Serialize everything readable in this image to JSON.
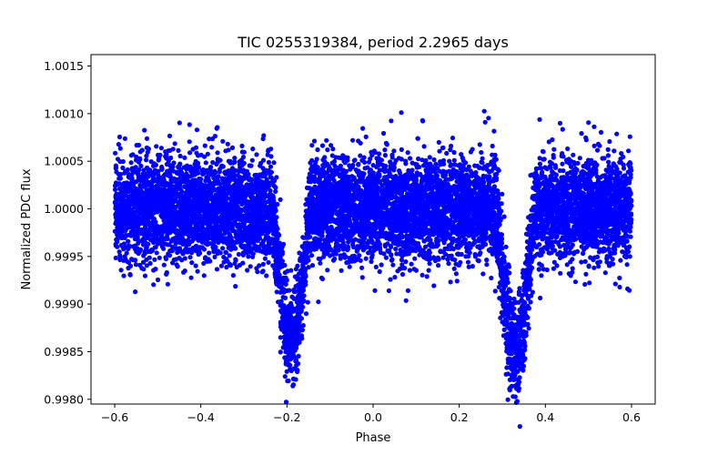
{
  "chart_data": {
    "type": "scatter",
    "title": "TIC 0255319384, period 2.2965 days",
    "xlabel": "Phase",
    "ylabel": "Normalized PDC flux",
    "xlim": [
      -0.655,
      0.655
    ],
    "ylim": [
      0.99795,
      1.00162
    ],
    "xticks": [
      -0.6,
      -0.4,
      -0.2,
      0.0,
      0.2,
      0.4,
      0.6
    ],
    "xtick_labels": [
      "−0.6",
      "−0.4",
      "−0.2",
      "0.0",
      "0.2",
      "0.4",
      "0.6"
    ],
    "yticks": [
      0.998,
      0.9985,
      0.999,
      0.9995,
      1.0,
      1.0005,
      1.001,
      1.0015
    ],
    "ytick_labels": [
      "0.9980",
      "0.9985",
      "0.9990",
      "0.9995",
      "1.0000",
      "1.0005",
      "1.0010",
      "1.0015"
    ],
    "grid": false,
    "legend": "none",
    "series": [
      {
        "color": "#0000ff",
        "phase_range": [
          -0.6,
          0.6
        ],
        "baseline": 1.0,
        "scatter_sigma": 0.00027,
        "n_points": 9000,
        "eclipses": [
          {
            "phase": -0.19,
            "depth": 0.00135,
            "half_width": 0.045
          },
          {
            "phase": 0.33,
            "depth": 0.0015,
            "half_width": 0.045
          }
        ]
      }
    ]
  }
}
